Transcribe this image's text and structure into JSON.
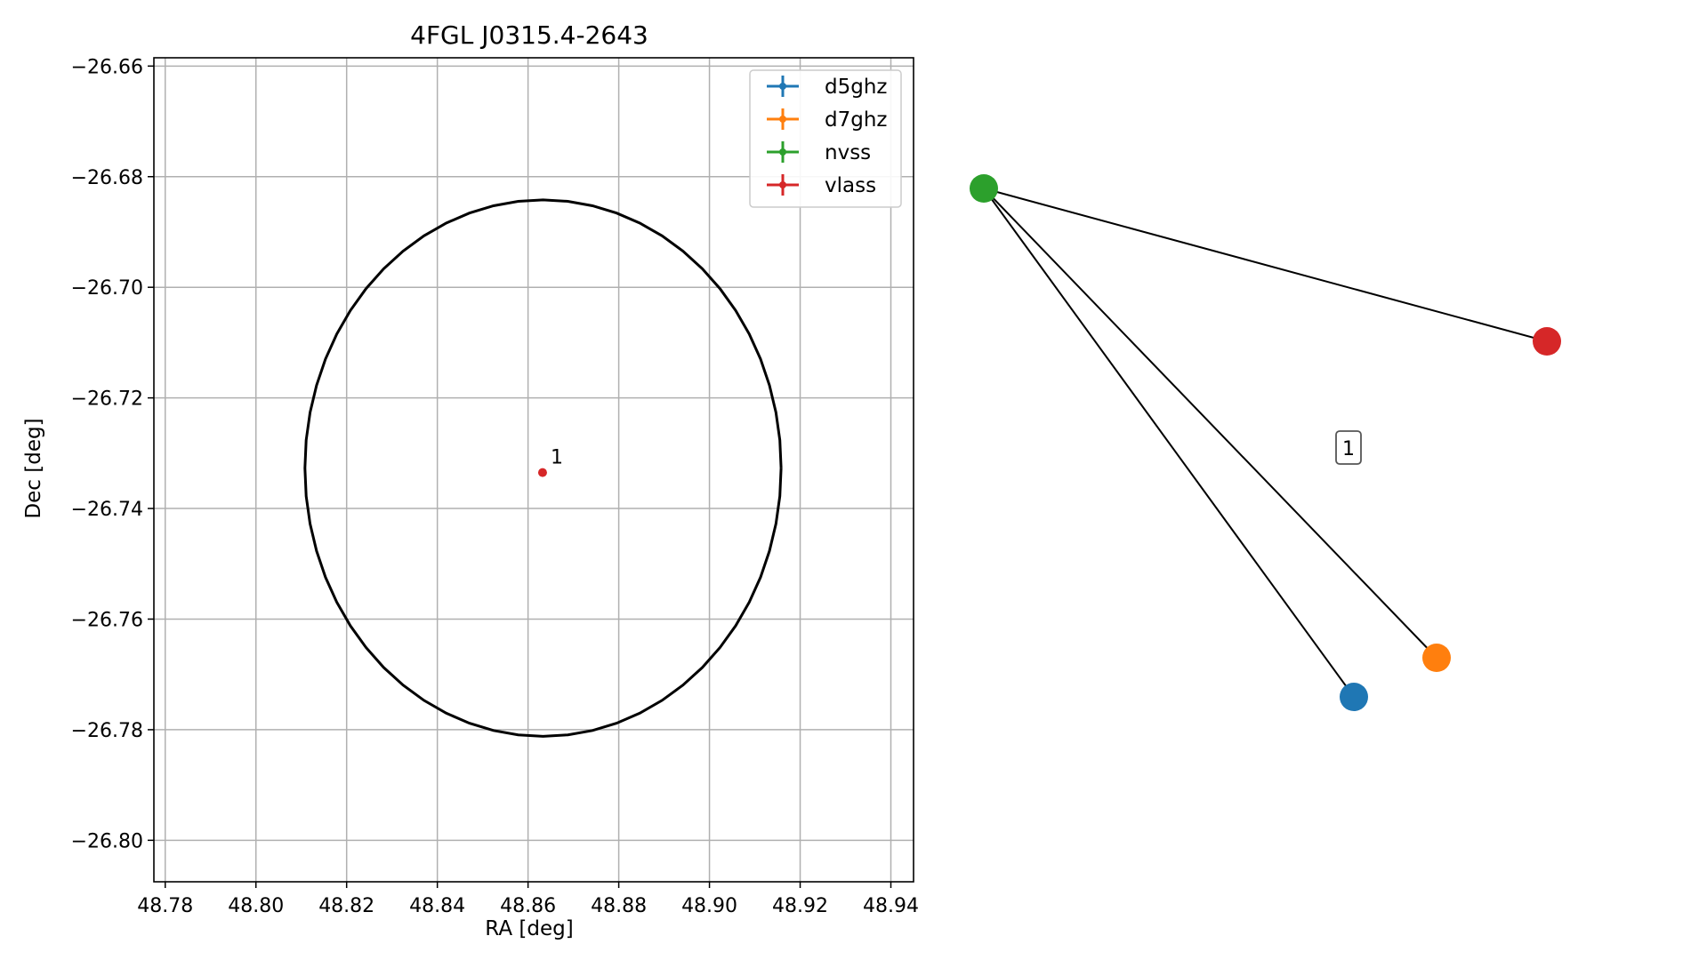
{
  "chart_data": [
    {
      "type": "scatter",
      "title": "4FGL J0315.4-2643",
      "xlabel": "RA [deg]",
      "ylabel": "Dec [deg]",
      "xlim": [
        48.7775,
        48.945
      ],
      "ylim": [
        -26.8075,
        -26.6585
      ],
      "xticks": [
        48.78,
        48.8,
        48.82,
        48.84,
        48.86,
        48.88,
        48.9,
        48.92,
        48.94
      ],
      "xtick_labels": [
        "48.78",
        "48.80",
        "48.82",
        "48.84",
        "48.86",
        "48.88",
        "48.90",
        "48.92",
        "48.94"
      ],
      "yticks": [
        -26.66,
        -26.68,
        -26.7,
        -26.72,
        -26.74,
        -26.76,
        -26.78,
        -26.8
      ],
      "ytick_labels": [
        "−26.66",
        "−26.68",
        "−26.70",
        "−26.72",
        "−26.74",
        "−26.76",
        "−26.78",
        "−26.80"
      ],
      "grid": true,
      "legend_position": "top-right",
      "legend": [
        {
          "label": "d5ghz",
          "color": "#1f77b4"
        },
        {
          "label": "d7ghz",
          "color": "#ff7f0e"
        },
        {
          "label": "nvss",
          "color": "#2ca02c"
        },
        {
          "label": "vlass",
          "color": "#d62728"
        }
      ],
      "ellipse": {
        "center_ra": 48.8633,
        "center_dec": -26.7327,
        "semi_axis_ra": 0.0525,
        "semi_axis_dec": 0.0485,
        "color": "#000000"
      },
      "points": [
        {
          "label": "1",
          "ra": 48.8632,
          "dec": -26.7335,
          "color": "#d62728"
        }
      ]
    },
    {
      "type": "network",
      "nodes": [
        {
          "id": "nvss",
          "color": "#2ca02c"
        },
        {
          "id": "vlass",
          "color": "#d62728"
        },
        {
          "id": "d7ghz",
          "color": "#ff7f0e"
        },
        {
          "id": "d5ghz",
          "color": "#1f77b4"
        }
      ],
      "edges": [
        [
          "nvss",
          "vlass"
        ],
        [
          "nvss",
          "d7ghz"
        ],
        [
          "nvss",
          "d5ghz"
        ]
      ],
      "group_label": "1"
    }
  ]
}
